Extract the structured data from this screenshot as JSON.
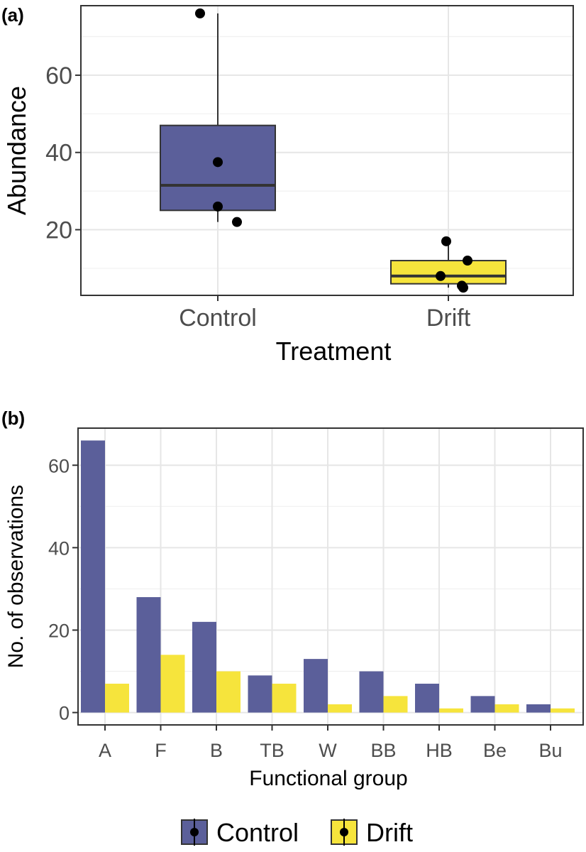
{
  "colors": {
    "control": "#5b5f9a",
    "drift": "#f6e43c",
    "point": "#000000"
  },
  "chart_data": [
    {
      "panel": "(a)",
      "type": "box",
      "xlabel": "Treatment",
      "ylabel": "Abundance",
      "ylim": [
        3,
        78
      ],
      "yticks": [
        20,
        40,
        60
      ],
      "grid": true,
      "groups": [
        {
          "name": "Control",
          "min": 22,
          "q1": 25,
          "median": 31.5,
          "q3": 47,
          "max": 76,
          "points": [
            76,
            37.5,
            26,
            22
          ]
        },
        {
          "name": "Drift",
          "min": 5,
          "q1": 6,
          "median": 8,
          "q3": 12,
          "max": 17,
          "points": [
            17,
            12,
            8,
            5.5,
            5
          ]
        }
      ]
    },
    {
      "panel": "(b)",
      "type": "bar",
      "xlabel": "Functional group",
      "ylabel": "No. of observations",
      "ylim": [
        -3,
        69
      ],
      "yticks": [
        0,
        20,
        40,
        60
      ],
      "grid": true,
      "categories": [
        "A",
        "F",
        "B",
        "TB",
        "W",
        "BB",
        "HB",
        "Be",
        "Bu"
      ],
      "series": [
        {
          "name": "Control",
          "values": [
            66,
            28,
            22,
            9,
            13,
            10,
            7,
            4,
            2
          ]
        },
        {
          "name": "Drift",
          "values": [
            7,
            14,
            10,
            7,
            2,
            4,
            1,
            2,
            1
          ]
        }
      ]
    }
  ],
  "legend": {
    "position": "bottom",
    "items": [
      "Control",
      "Drift"
    ]
  }
}
